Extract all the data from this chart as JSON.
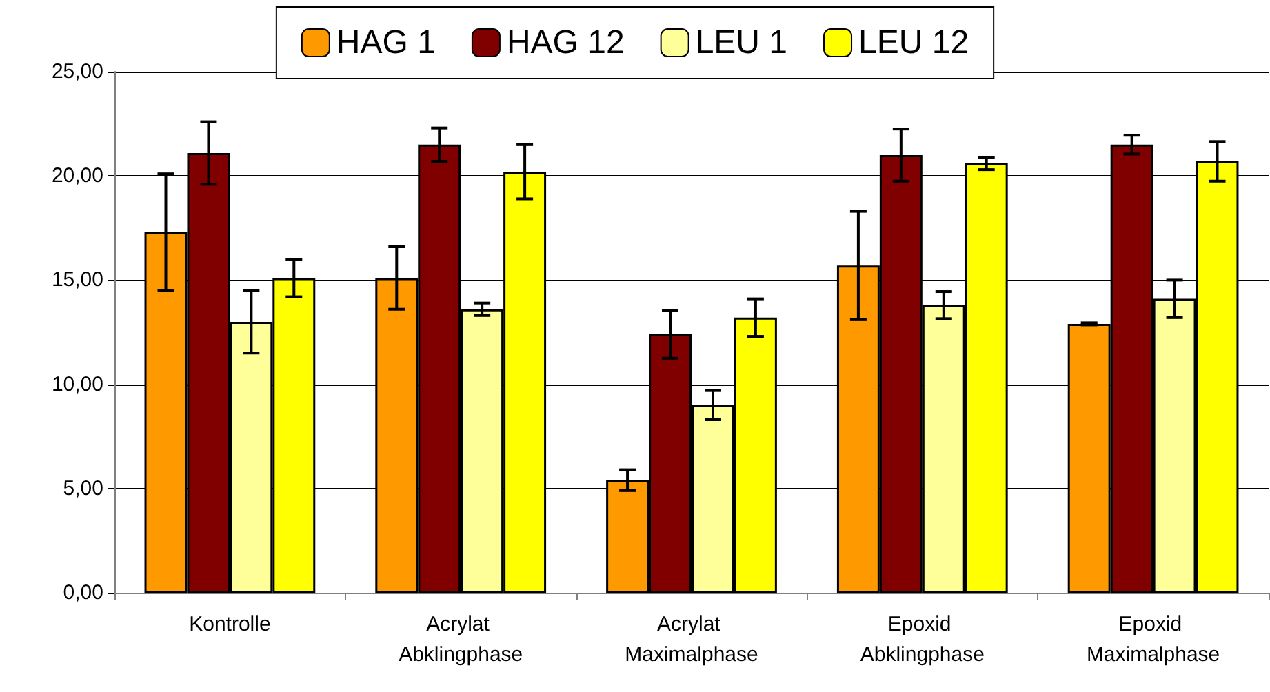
{
  "chart_data": {
    "type": "bar",
    "categories": [
      "Kontrolle",
      "Acrylat Abklingphase",
      "Acrylat Maximalphase",
      "Epoxid Abklingphase",
      "Epoxid Maximalphase"
    ],
    "series": [
      {
        "name": "HAG 1",
        "color": "#ff9900",
        "values": [
          17.3,
          15.1,
          5.4,
          15.7,
          12.9
        ],
        "errors": [
          2.8,
          1.5,
          0.5,
          2.6,
          0.05
        ]
      },
      {
        "name": "HAG 12",
        "color": "#800000",
        "values": [
          21.1,
          21.5,
          12.4,
          21.0,
          21.5
        ],
        "errors": [
          1.5,
          0.8,
          1.15,
          1.25,
          0.45
        ]
      },
      {
        "name": "LEU 1",
        "color": "#ffff99",
        "values": [
          13.0,
          13.6,
          9.0,
          13.8,
          14.1
        ],
        "errors": [
          1.5,
          0.3,
          0.7,
          0.65,
          0.9
        ]
      },
      {
        "name": "LEU 12",
        "color": "#ffff00",
        "values": [
          15.1,
          20.2,
          13.2,
          20.6,
          20.7
        ],
        "errors": [
          0.9,
          1.3,
          0.9,
          0.3,
          0.95
        ]
      }
    ],
    "ylim": [
      0,
      25
    ],
    "yticks": [
      {
        "value": 0,
        "label": "0,00"
      },
      {
        "value": 5,
        "label": "5,00"
      },
      {
        "value": 10,
        "label": "10,00"
      },
      {
        "value": 15,
        "label": "15,00"
      },
      {
        "value": 20,
        "label": "20,00"
      },
      {
        "value": 25,
        "label": "25,00"
      }
    ],
    "grid": "y",
    "legend": "top"
  }
}
